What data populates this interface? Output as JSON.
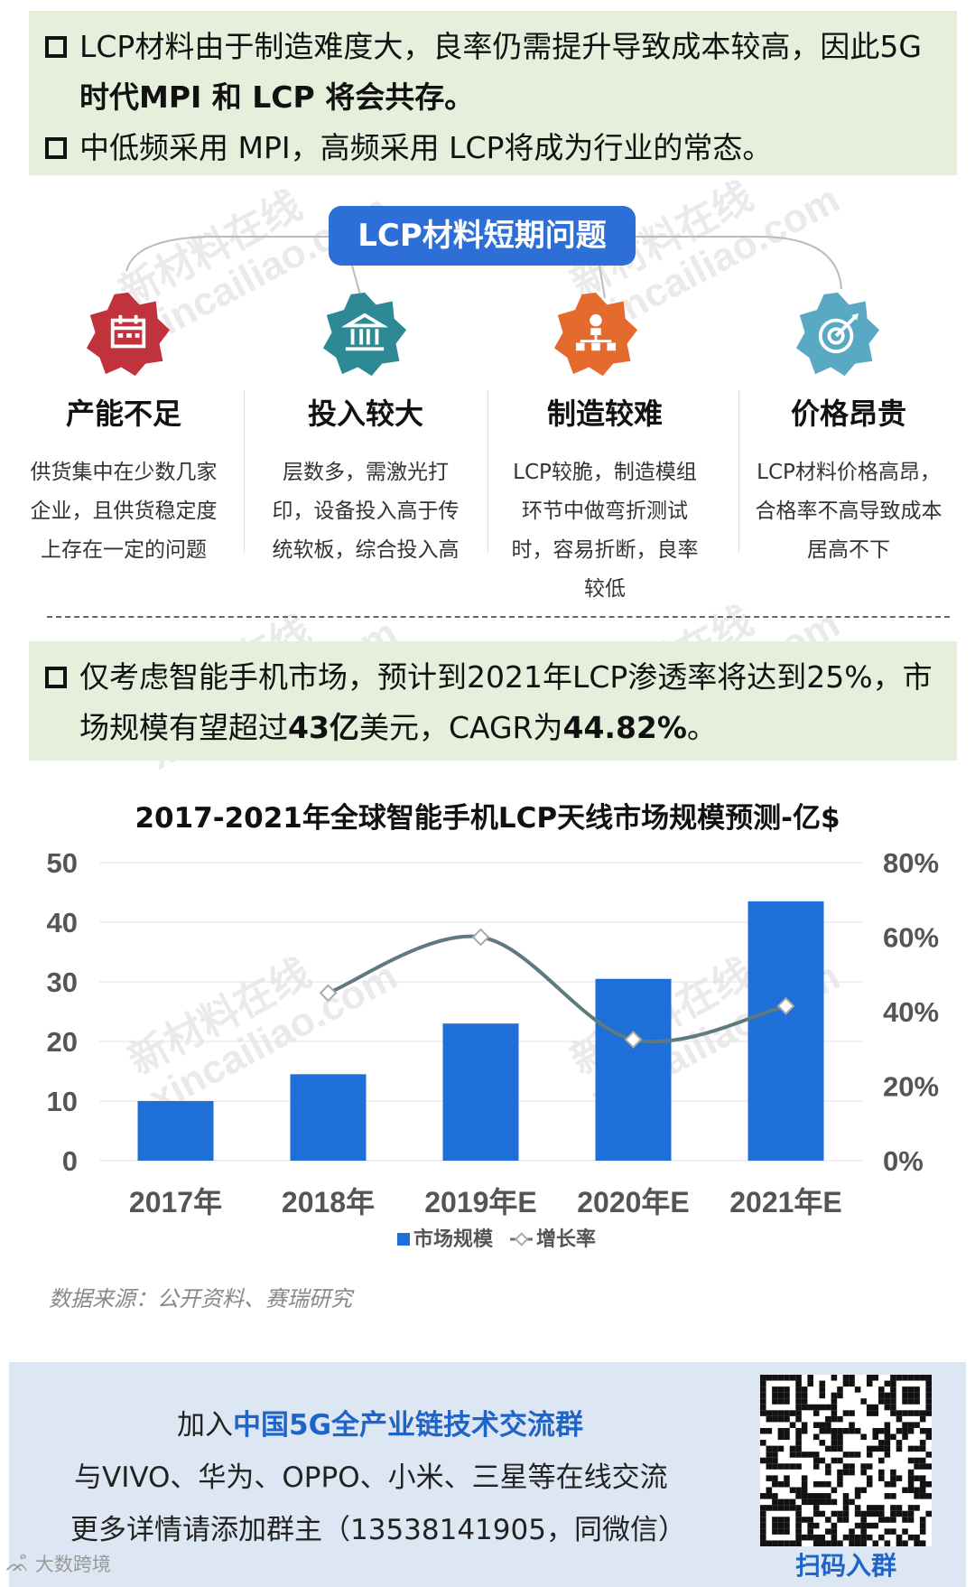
{
  "top_notes": [
    {
      "text": "LCP材料由于制造难度大，良率仍需提升导致成本较高，因此5G ",
      "bold": "时代MPI 和 LCP 将会共存。"
    },
    {
      "text": "中低频采用 MPI，高频采用 LCP将成为行业的常态。",
      "bold": ""
    }
  ],
  "problem_title": "LCP材料短期问题",
  "problems": [
    {
      "title": "产能不足",
      "desc_lines": [
        "供货集中在少数几家",
        "企业，且供货稳定度",
        "上存在一定的问题"
      ],
      "color": "#c0323c",
      "icon": "calendar-icon"
    },
    {
      "title": "投入较大",
      "desc_lines": [
        "层数多，需激光打",
        "印，设备投入高于传",
        "统软板，综合投入高"
      ],
      "color": "#2d8a94",
      "icon": "bank-icon"
    },
    {
      "title": "制造较难",
      "desc_lines": [
        "LCP较脆，制造模组",
        "环节中做弯折测试",
        "时，容易折断，良率",
        "较低"
      ],
      "color": "#e56a2d",
      "icon": "org-chart-icon"
    },
    {
      "title": "价格昂贵",
      "desc_lines": [
        "LCP材料价格高昂，",
        "合格率不高导致成本",
        "居高不下"
      ],
      "color": "#5aa9c4",
      "icon": "target-icon"
    }
  ],
  "market_note": {
    "text1": "仅考虑智能手机市场，预计到2021年LCP渗透率将达到25%，市场规模有望超过",
    "bold1": "43亿",
    "text2": "美元，CAGR为",
    "bold2": "44.82%",
    "text3": "。"
  },
  "chart_data": {
    "type": "bar",
    "title": "2017-2021年全球智能手机LCP天线市场规模预测-亿$",
    "categories": [
      "2017年",
      "2018年",
      "2019年E",
      "2020年E",
      "2021年E"
    ],
    "series": [
      {
        "name": "市场规模",
        "type": "bar",
        "axis": "left",
        "values": [
          10,
          14.5,
          23,
          30.5,
          43.5
        ],
        "color": "#1f6fd8"
      },
      {
        "name": "增长率",
        "type": "line",
        "axis": "right",
        "values": [
          null,
          45,
          60,
          32.5,
          41.5
        ],
        "color": "#5e7a80"
      }
    ],
    "ylim": [
      0,
      50
    ],
    "yticks": [
      "0",
      "10",
      "20",
      "30",
      "40",
      "50"
    ],
    "y2lim": [
      0,
      80
    ],
    "y2ticks": [
      "0%",
      "20%",
      "40%",
      "60%",
      "80%"
    ],
    "legend": "bottom"
  },
  "source": "数据来源：公开资料、赛瑞研究",
  "footer": {
    "line1_a": "加入",
    "line1_b": "中国5G全产业链技术交流群",
    "line2": "与VIVO、华为、OPPO、小米、三星等在线交流",
    "line3": "更多详情请添加群主（13538141905，同微信）",
    "qr_label": "扫码入群",
    "corner": "大数跨境"
  },
  "watermarks": [
    "新材料在线",
    "xincailiao.com"
  ]
}
